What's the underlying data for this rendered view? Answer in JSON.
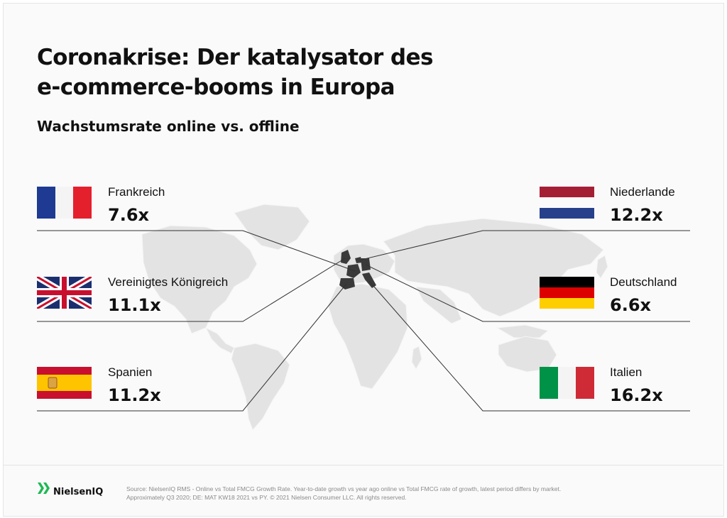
{
  "title_line1": "Coronakrise: Der katalysator des",
  "title_line2": "e-commerce-booms in Europa",
  "subtitle": "Wachstumsrate online vs. offline",
  "chart_data": {
    "type": "table",
    "title": "Coronakrise: Der katalysator des e-commerce-booms in Europa",
    "subtitle": "Wachstumsrate online vs. offline",
    "categories": [
      "Frankreich",
      "Vereinigtes Königreich",
      "Spanien",
      "Niederlande",
      "Deutschland",
      "Italien"
    ],
    "values": [
      7.6,
      11.1,
      11.2,
      12.2,
      6.6,
      16.2
    ],
    "labels": [
      "7.6x",
      "11.1x",
      "11.2x",
      "12.2x",
      "6.6x",
      "16.2x"
    ]
  },
  "countries": [
    {
      "name": "Frankreich",
      "value": "7.6x",
      "flag": "france-flag"
    },
    {
      "name": "Vereinigtes Königreich",
      "value": "11.1x",
      "flag": "uk-flag"
    },
    {
      "name": "Spanien",
      "value": "11.2x",
      "flag": "spain-flag"
    },
    {
      "name": "Niederlande",
      "value": "12.2x",
      "flag": "netherlands-flag"
    },
    {
      "name": "Deutschland",
      "value": "6.6x",
      "flag": "germany-flag"
    },
    {
      "name": "Italien",
      "value": "16.2x",
      "flag": "italy-flag"
    }
  ],
  "colors": {
    "map_land": "#e3e3e3",
    "map_highlight": "#3a3a3a",
    "logo_green": "#1db954"
  },
  "footer": {
    "brand": "NielsenIQ",
    "source_line1": "Source: NielsenIQ RMS - Online vs Total FMCG Growth Rate. Year-to-date growth vs year ago online vs Total FMCG rate of growth, latest period differs by market.",
    "source_line2": "Approximately Q3 2020; DE: MAT KW18 2021 vs PY. © 2021 Nielsen Consumer LLC. All rights reserved."
  }
}
